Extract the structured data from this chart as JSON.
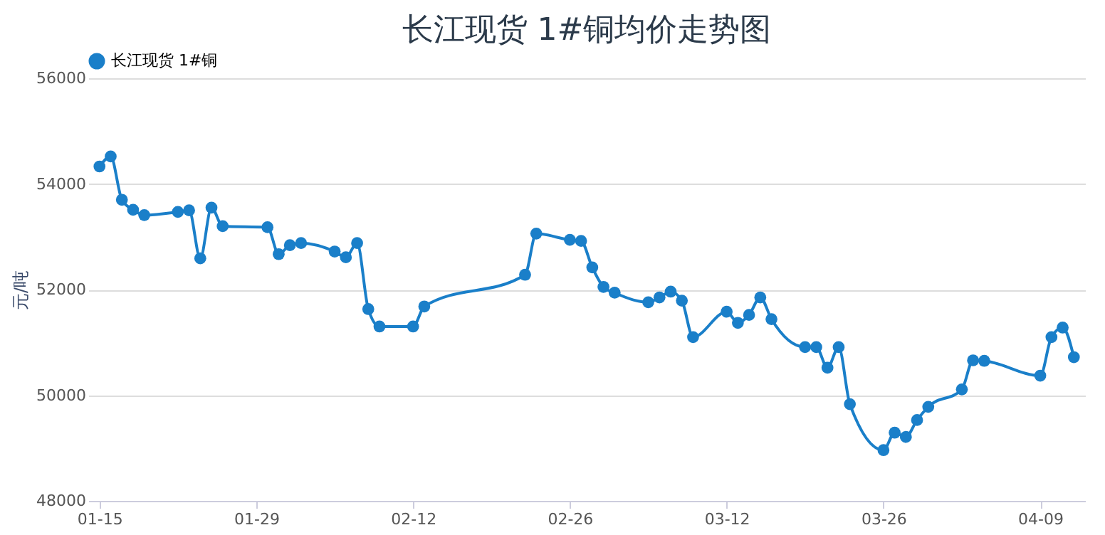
{
  "chart_data": {
    "type": "line",
    "title": "长江现货 1#铜均价走势图",
    "ylabel": "元/吨",
    "xlim": [
      "--01-14",
      "--04-13"
    ],
    "xticks": [
      {
        "value": "--01-15",
        "label": "01-15"
      },
      {
        "value": "--01-29",
        "label": "01-29"
      },
      {
        "value": "--02-12",
        "label": "02-12"
      },
      {
        "value": "--02-26",
        "label": "02-26"
      },
      {
        "value": "--03-12",
        "label": "03-12"
      },
      {
        "value": "--03-26",
        "label": "03-26"
      },
      {
        "value": "--04-09",
        "label": "04-09"
      }
    ],
    "ylim": [
      48000,
      56000
    ],
    "yticks": [
      48000,
      50000,
      52000,
      54000,
      56000
    ],
    "grid": "y",
    "legend": "top",
    "marker": "circle",
    "line_style": "solid",
    "x": [
      "--01-15",
      "--01-16",
      "--01-17",
      "--01-18",
      "--01-19",
      "--01-22",
      "--01-23",
      "--01-24",
      "--01-25",
      "--01-26",
      "--01-30",
      "--01-31",
      "--02-01",
      "--02-02",
      "--02-05",
      "--02-06",
      "--02-07",
      "--02-08",
      "--02-09",
      "--02-12",
      "--02-13",
      "--02-22",
      "--02-23",
      "--02-26",
      "--02-27",
      "--02-28",
      "--03-01",
      "--03-02",
      "--03-05",
      "--03-06",
      "--03-07",
      "--03-08",
      "--03-09",
      "--03-12",
      "--03-13",
      "--03-14",
      "--03-15",
      "--03-16",
      "--03-19",
      "--03-20",
      "--03-21",
      "--03-22",
      "--03-23",
      "--03-26",
      "--03-27",
      "--03-28",
      "--03-29",
      "--03-30",
      "--04-02",
      "--04-03",
      "--04-04",
      "--04-09",
      "--04-10",
      "--04-11",
      "--04-12"
    ],
    "series": [
      {
        "name": "长江现货 1#铜",
        "color": "#1a7fc9",
        "values": [
          54330,
          54520,
          53700,
          53510,
          53410,
          53470,
          53500,
          52590,
          53550,
          53200,
          53180,
          52670,
          52840,
          52880,
          52720,
          52610,
          52880,
          51630,
          51300,
          51300,
          51680,
          52280,
          53060,
          52940,
          52920,
          52420,
          52050,
          51940,
          51760,
          51850,
          51960,
          51790,
          51100,
          51580,
          51370,
          51520,
          51850,
          51440,
          50910,
          50910,
          50520,
          50910,
          49830,
          48960,
          49290,
          49210,
          49530,
          49780,
          50110,
          50660,
          50650,
          50370,
          51100,
          51280,
          50720
        ]
      }
    ]
  }
}
